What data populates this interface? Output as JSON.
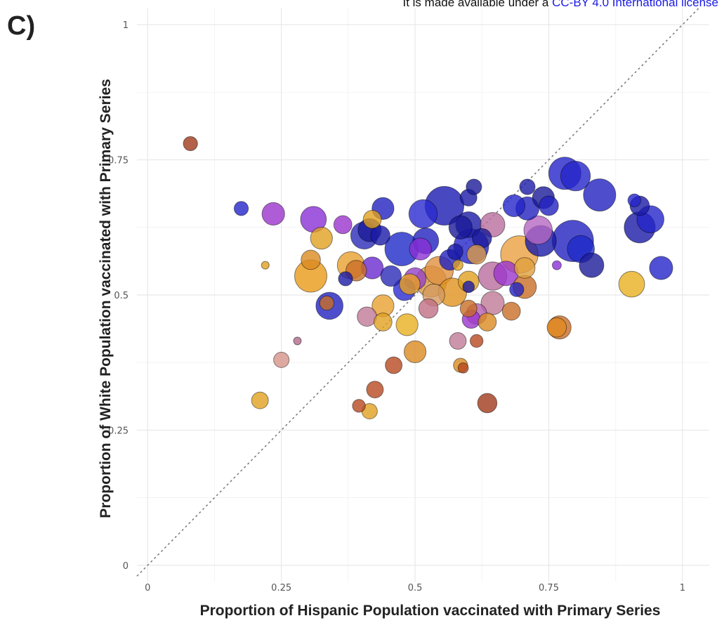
{
  "header": {
    "license_prefix": "It is made available under a",
    "license_link": "CC-BY 4.0 International license"
  },
  "panel_label": "C)",
  "chart_data": {
    "type": "scatter",
    "xlabel": "Proportion of Hispanic Population vaccinated with Primary Series",
    "ylabel": "Proportion of White Population vaccinated with Primary Series",
    "xlim": [
      -0.02,
      1.05
    ],
    "ylim": [
      -0.03,
      1.03
    ],
    "x_ticks": [
      0,
      0.25,
      0.5,
      0.75,
      1
    ],
    "x_tick_labels": [
      "0",
      "0.25",
      "0.5",
      "0.75",
      "1"
    ],
    "y_ticks": [
      0,
      0.25,
      0.5,
      0.75,
      1
    ],
    "y_tick_labels": [
      "0",
      "0.25",
      "0.5",
      "0.75",
      "1"
    ],
    "grid": true,
    "reference_line": "y = x (dotted diagonal)",
    "legend": "none",
    "point_size_encoding": "relative marker size (1 = smallest)",
    "points": [
      {
        "x": 0.08,
        "y": 0.78,
        "size": 2.2,
        "color": "#a0391a"
      },
      {
        "x": 0.175,
        "y": 0.66,
        "size": 2.2,
        "color": "#2424c9"
      },
      {
        "x": 0.235,
        "y": 0.65,
        "size": 3.5,
        "color": "#9b35cc"
      },
      {
        "x": 0.31,
        "y": 0.64,
        "size": 4.0,
        "color": "#8a2fd6"
      },
      {
        "x": 0.365,
        "y": 0.63,
        "size": 2.8,
        "color": "#9b35cc"
      },
      {
        "x": 0.325,
        "y": 0.605,
        "size": 3.4,
        "color": "#e0a020"
      },
      {
        "x": 0.22,
        "y": 0.555,
        "size": 1.2,
        "color": "#e0a020"
      },
      {
        "x": 0.305,
        "y": 0.565,
        "size": 3.0,
        "color": "#d98a20"
      },
      {
        "x": 0.305,
        "y": 0.535,
        "size": 5.0,
        "color": "#e89a18"
      },
      {
        "x": 0.37,
        "y": 0.53,
        "size": 2.2,
        "color": "#1a1aa8"
      },
      {
        "x": 0.38,
        "y": 0.555,
        "size": 4.2,
        "color": "#e8a030"
      },
      {
        "x": 0.39,
        "y": 0.545,
        "size": 3.2,
        "color": "#c96e26"
      },
      {
        "x": 0.405,
        "y": 0.61,
        "size": 4.2,
        "color": "#2a2ab8"
      },
      {
        "x": 0.415,
        "y": 0.62,
        "size": 3.6,
        "color": "#1a1a99"
      },
      {
        "x": 0.42,
        "y": 0.64,
        "size": 2.8,
        "color": "#e0a020"
      },
      {
        "x": 0.435,
        "y": 0.61,
        "size": 3.0,
        "color": "#1a1aa8"
      },
      {
        "x": 0.44,
        "y": 0.66,
        "size": 3.4,
        "color": "#2222c0"
      },
      {
        "x": 0.42,
        "y": 0.55,
        "size": 3.4,
        "color": "#6a2ad0"
      },
      {
        "x": 0.455,
        "y": 0.535,
        "size": 3.2,
        "color": "#2a2ab8"
      },
      {
        "x": 0.475,
        "y": 0.585,
        "size": 5.2,
        "color": "#1e2ac8"
      },
      {
        "x": 0.5,
        "y": 0.53,
        "size": 3.4,
        "color": "#9540c8"
      },
      {
        "x": 0.48,
        "y": 0.51,
        "size": 3.4,
        "color": "#2a2ad0"
      },
      {
        "x": 0.49,
        "y": 0.52,
        "size": 3.2,
        "color": "#e8a020"
      },
      {
        "x": 0.515,
        "y": 0.65,
        "size": 4.4,
        "color": "#2a2ad0"
      },
      {
        "x": 0.52,
        "y": 0.6,
        "size": 4.0,
        "color": "#2222c0"
      },
      {
        "x": 0.51,
        "y": 0.585,
        "size": 3.4,
        "color": "#8a2fd6"
      },
      {
        "x": 0.53,
        "y": 0.525,
        "size": 4.8,
        "color": "#d99a45"
      },
      {
        "x": 0.545,
        "y": 0.545,
        "size": 4.4,
        "color": "#e09040"
      },
      {
        "x": 0.535,
        "y": 0.5,
        "size": 3.4,
        "color": "#d59a60"
      },
      {
        "x": 0.525,
        "y": 0.475,
        "size": 3.0,
        "color": "#c06f85"
      },
      {
        "x": 0.555,
        "y": 0.665,
        "size": 6.0,
        "color": "#1a1ab0"
      },
      {
        "x": 0.565,
        "y": 0.565,
        "size": 3.2,
        "color": "#2222c0"
      },
      {
        "x": 0.575,
        "y": 0.58,
        "size": 2.4,
        "color": "#1a1aa8"
      },
      {
        "x": 0.58,
        "y": 0.555,
        "size": 1.6,
        "color": "#e0a020"
      },
      {
        "x": 0.57,
        "y": 0.505,
        "size": 4.4,
        "color": "#e0921e"
      },
      {
        "x": 0.585,
        "y": 0.625,
        "size": 3.6,
        "color": "#1a1a99"
      },
      {
        "x": 0.6,
        "y": 0.68,
        "size": 2.6,
        "color": "#1a1aa8"
      },
      {
        "x": 0.61,
        "y": 0.7,
        "size": 2.4,
        "color": "#1a1a99"
      },
      {
        "x": 0.6,
        "y": 0.63,
        "size": 4.0,
        "color": "#1a1aa8"
      },
      {
        "x": 0.605,
        "y": 0.59,
        "size": 5.4,
        "color": "#2424c9"
      },
      {
        "x": 0.625,
        "y": 0.605,
        "size": 3.0,
        "color": "#1a1a99"
      },
      {
        "x": 0.6,
        "y": 0.525,
        "size": 3.2,
        "color": "#e0a020"
      },
      {
        "x": 0.6,
        "y": 0.515,
        "size": 1.8,
        "color": "#1a1aa8"
      },
      {
        "x": 0.6,
        "y": 0.475,
        "size": 2.6,
        "color": "#c96e26"
      },
      {
        "x": 0.615,
        "y": 0.465,
        "size": 3.2,
        "color": "#b560b0"
      },
      {
        "x": 0.605,
        "y": 0.455,
        "size": 2.8,
        "color": "#9b35cc"
      },
      {
        "x": 0.615,
        "y": 0.575,
        "size": 3.0,
        "color": "#d99a45"
      },
      {
        "x": 0.645,
        "y": 0.63,
        "size": 3.8,
        "color": "#b96d9d"
      },
      {
        "x": 0.645,
        "y": 0.535,
        "size": 4.4,
        "color": "#b96d9d"
      },
      {
        "x": 0.645,
        "y": 0.485,
        "size": 3.6,
        "color": "#c07a96"
      },
      {
        "x": 0.635,
        "y": 0.45,
        "size": 2.8,
        "color": "#d98a20"
      },
      {
        "x": 0.615,
        "y": 0.415,
        "size": 2.0,
        "color": "#b7481f"
      },
      {
        "x": 0.67,
        "y": 0.54,
        "size": 3.8,
        "color": "#9b35cc"
      },
      {
        "x": 0.68,
        "y": 0.47,
        "size": 2.8,
        "color": "#c96e26"
      },
      {
        "x": 0.685,
        "y": 0.665,
        "size": 3.4,
        "color": "#2424c9"
      },
      {
        "x": 0.695,
        "y": 0.575,
        "size": 5.8,
        "color": "#eaa040"
      },
      {
        "x": 0.69,
        "y": 0.51,
        "size": 2.2,
        "color": "#2222c0"
      },
      {
        "x": 0.705,
        "y": 0.55,
        "size": 3.2,
        "color": "#e0a040"
      },
      {
        "x": 0.705,
        "y": 0.515,
        "size": 3.6,
        "color": "#c96e26"
      },
      {
        "x": 0.71,
        "y": 0.7,
        "size": 2.4,
        "color": "#1a1aa8"
      },
      {
        "x": 0.71,
        "y": 0.66,
        "size": 3.6,
        "color": "#2222c0"
      },
      {
        "x": 0.73,
        "y": 0.62,
        "size": 4.4,
        "color": "#b568c2"
      },
      {
        "x": 0.735,
        "y": 0.6,
        "size": 4.8,
        "color": "#1a1aa8"
      },
      {
        "x": 0.74,
        "y": 0.68,
        "size": 3.4,
        "color": "#1a1a99"
      },
      {
        "x": 0.75,
        "y": 0.665,
        "size": 3.0,
        "color": "#2222c0"
      },
      {
        "x": 0.765,
        "y": 0.44,
        "size": 3.0,
        "color": "#e08a20"
      },
      {
        "x": 0.77,
        "y": 0.44,
        "size": 3.6,
        "color": "#c96e26"
      },
      {
        "x": 0.765,
        "y": 0.555,
        "size": 1.4,
        "color": "#8a2fd6"
      },
      {
        "x": 0.78,
        "y": 0.725,
        "size": 5.0,
        "color": "#2424c9"
      },
      {
        "x": 0.795,
        "y": 0.6,
        "size": 6.4,
        "color": "#2222c0"
      },
      {
        "x": 0.8,
        "y": 0.72,
        "size": 4.6,
        "color": "#2424c9"
      },
      {
        "x": 0.81,
        "y": 0.585,
        "size": 4.2,
        "color": "#1e2ac8"
      },
      {
        "x": 0.83,
        "y": 0.555,
        "size": 3.8,
        "color": "#1a1a99"
      },
      {
        "x": 0.845,
        "y": 0.685,
        "size": 5.0,
        "color": "#2222c0"
      },
      {
        "x": 0.905,
        "y": 0.52,
        "size": 4.0,
        "color": "#e8b020"
      },
      {
        "x": 0.91,
        "y": 0.675,
        "size": 2.0,
        "color": "#2424c9"
      },
      {
        "x": 0.92,
        "y": 0.665,
        "size": 3.0,
        "color": "#1a1aa8"
      },
      {
        "x": 0.92,
        "y": 0.625,
        "size": 4.8,
        "color": "#1a1aa8"
      },
      {
        "x": 0.94,
        "y": 0.64,
        "size": 4.2,
        "color": "#2424c9"
      },
      {
        "x": 0.96,
        "y": 0.55,
        "size": 3.6,
        "color": "#2424c9"
      },
      {
        "x": 0.335,
        "y": 0.485,
        "size": 2.2,
        "color": "#c96e26"
      },
      {
        "x": 0.34,
        "y": 0.48,
        "size": 4.2,
        "color": "#2222c0"
      },
      {
        "x": 0.41,
        "y": 0.46,
        "size": 3.0,
        "color": "#c07a96"
      },
      {
        "x": 0.44,
        "y": 0.48,
        "size": 3.4,
        "color": "#e8a030"
      },
      {
        "x": 0.44,
        "y": 0.45,
        "size": 2.8,
        "color": "#e0a020"
      },
      {
        "x": 0.485,
        "y": 0.445,
        "size": 3.4,
        "color": "#e8b020"
      },
      {
        "x": 0.5,
        "y": 0.395,
        "size": 3.4,
        "color": "#d98a20"
      },
      {
        "x": 0.46,
        "y": 0.37,
        "size": 2.6,
        "color": "#b7481f"
      },
      {
        "x": 0.58,
        "y": 0.415,
        "size": 2.6,
        "color": "#c07a96"
      },
      {
        "x": 0.585,
        "y": 0.37,
        "size": 2.2,
        "color": "#d98a20"
      },
      {
        "x": 0.59,
        "y": 0.365,
        "size": 1.6,
        "color": "#b7481f"
      },
      {
        "x": 0.425,
        "y": 0.325,
        "size": 2.6,
        "color": "#b7481f"
      },
      {
        "x": 0.395,
        "y": 0.295,
        "size": 2.0,
        "color": "#b7481f"
      },
      {
        "x": 0.415,
        "y": 0.285,
        "size": 2.4,
        "color": "#e0a020"
      },
      {
        "x": 0.635,
        "y": 0.3,
        "size": 3.0,
        "color": "#a0391a"
      },
      {
        "x": 0.25,
        "y": 0.38,
        "size": 2.4,
        "color": "#d4948a"
      },
      {
        "x": 0.28,
        "y": 0.415,
        "size": 1.2,
        "color": "#b06a8a"
      },
      {
        "x": 0.21,
        "y": 0.305,
        "size": 2.6,
        "color": "#e0a020"
      }
    ]
  }
}
